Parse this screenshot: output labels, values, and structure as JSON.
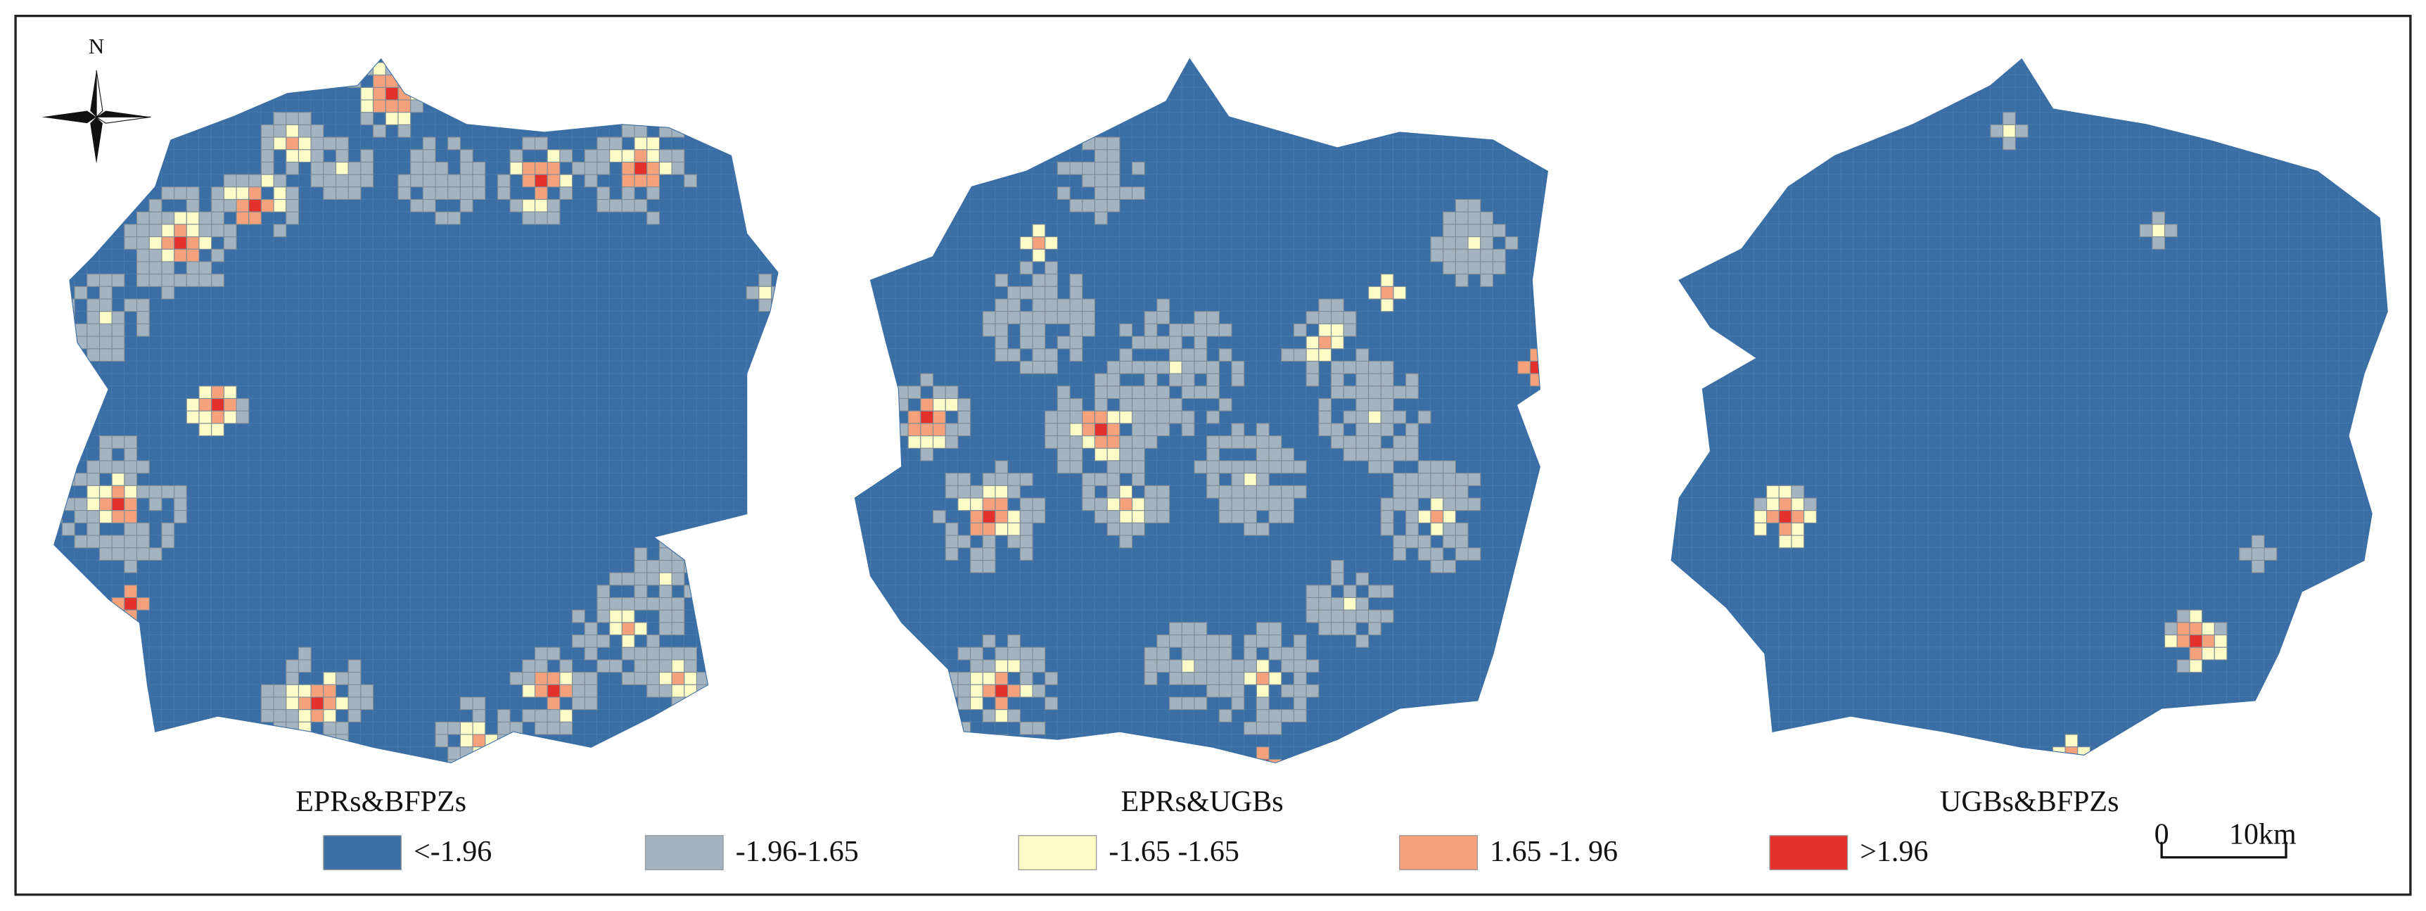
{
  "north": "N",
  "panels": [
    {
      "title": "EPRs&BFPZs"
    },
    {
      "title": "EPRs&UGBs"
    },
    {
      "title": "UGBs&BFPZs"
    }
  ],
  "legend": [
    {
      "label": "<-1.96",
      "color": "#3a6ea5"
    },
    {
      "label": "-1.96-1.65",
      "color": "#a3b3c0"
    },
    {
      "label": "-1.65 -1.65",
      "color": "#fcfcc6"
    },
    {
      "label": "1.65 -1. 96",
      "color": "#f5a27c"
    },
    {
      "label": ">1.96",
      "color": "#e5312b"
    }
  ],
  "scale_bar": {
    "start": "0",
    "end": "10km"
  }
}
